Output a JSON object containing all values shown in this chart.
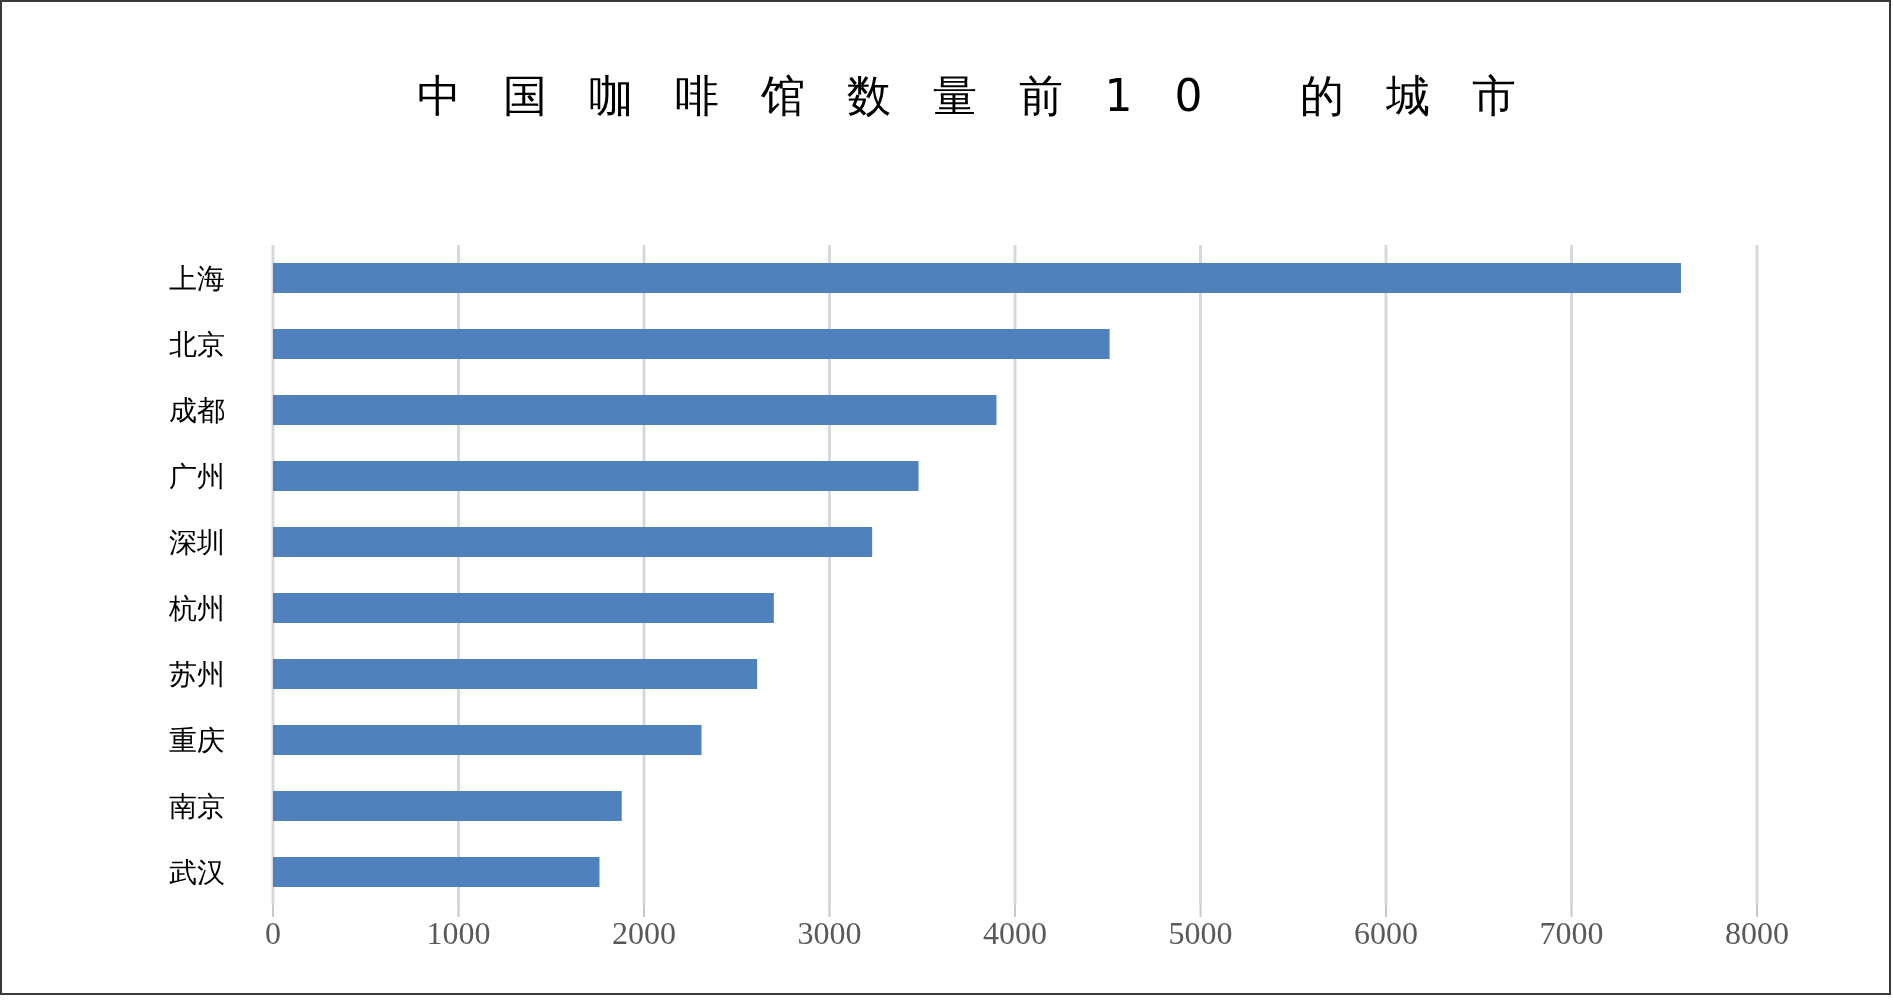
{
  "chart_data": {
    "type": "bar",
    "orientation": "horizontal",
    "title": "中国咖啡馆数量前10 的城市",
    "categories": [
      "上海",
      "北京",
      "成都",
      "广州",
      "深圳",
      "杭州",
      "苏州",
      "重庆",
      "南京",
      "武汉"
    ],
    "values": [
      7590,
      4510,
      3900,
      3480,
      3230,
      2700,
      2610,
      2310,
      1880,
      1760
    ],
    "color": "#4f81bd",
    "xlim": [
      0,
      8000
    ],
    "xticks": [
      0,
      1000,
      2000,
      3000,
      4000,
      5000,
      6000,
      7000,
      8000
    ],
    "grid": "x"
  }
}
